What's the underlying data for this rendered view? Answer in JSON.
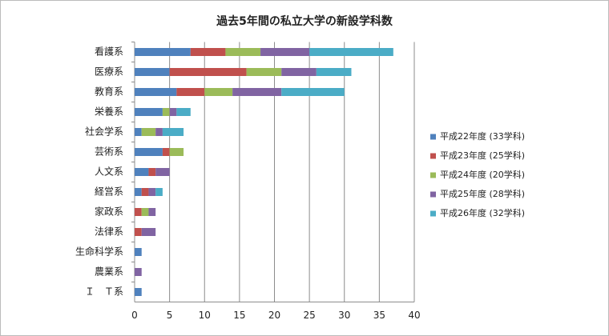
{
  "chart_data": {
    "type": "stacked-bar",
    "orientation": "horizontal",
    "title": "過去5年間の私立大学の新設学科数",
    "categories": [
      "看護系",
      "医療系",
      "教育系",
      "栄養系",
      "社会学系",
      "芸術系",
      "人文系",
      "経営系",
      "家政系",
      "法律系",
      "生命科学系",
      "農業系",
      "Ｉ　Ｔ系"
    ],
    "series": [
      {
        "name": "平成22年度 (33学科)",
        "color": "#4f81bd",
        "values": [
          8,
          5,
          6,
          4,
          1,
          4,
          2,
          1,
          0,
          0,
          1,
          0,
          1
        ]
      },
      {
        "name": "平成23年度 (25学科)",
        "color": "#c0504d",
        "values": [
          5,
          11,
          4,
          0,
          0,
          1,
          1,
          1,
          1,
          1,
          0,
          0,
          0
        ]
      },
      {
        "name": "平成24年度 (20学科)",
        "color": "#9bbb59",
        "values": [
          5,
          5,
          4,
          1,
          2,
          2,
          0,
          0,
          1,
          0,
          0,
          0,
          0
        ]
      },
      {
        "name": "平成25年度 (28学科)",
        "color": "#8064a2",
        "values": [
          7,
          5,
          7,
          1,
          1,
          0,
          2,
          1,
          1,
          2,
          0,
          1,
          0
        ]
      },
      {
        "name": "平成26年度 (32学科)",
        "color": "#4bacc6",
        "values": [
          12,
          5,
          9,
          2,
          3,
          0,
          0,
          1,
          0,
          0,
          0,
          0,
          0
        ]
      }
    ],
    "xlim": [
      0,
      40
    ],
    "xticks": [
      0,
      5,
      10,
      15,
      20,
      25,
      30,
      35,
      40
    ],
    "grid": true,
    "legend": "right"
  }
}
